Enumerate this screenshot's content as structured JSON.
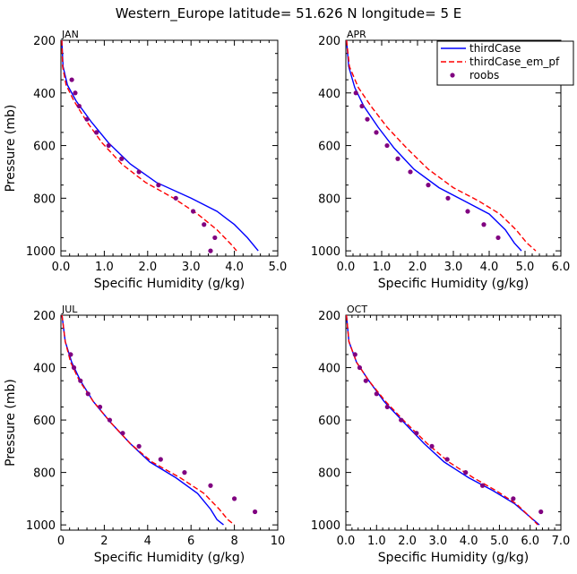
{
  "title": "Western_Europe  latitude= 51.626 N longitude= 5 E",
  "legend": {
    "placement": "top-right of APR panel",
    "entries": [
      {
        "label": "thirdCase",
        "color": "#0000ff",
        "style": "solid"
      },
      {
        "label": "thirdCase_em_pf",
        "color": "#ff0000",
        "style": "dashed"
      },
      {
        "label": "roobs",
        "color": "#800080",
        "style": "dot"
      }
    ]
  },
  "chart_data": [
    {
      "type": "line",
      "panel": "JAN",
      "xlabel": "Specific Humidity (g/kg)",
      "ylabel": "Pressure (mb)",
      "xlim": [
        0,
        5
      ],
      "ylim": [
        1020,
        200
      ],
      "xticks": [
        "0.0",
        "1.0",
        "2.0",
        "3.0",
        "4.0",
        "5.0"
      ],
      "yticks": [
        "200",
        "400",
        "600",
        "800",
        "1000"
      ],
      "series": [
        {
          "name": "thirdCase",
          "points": [
            [
              0.02,
              200
            ],
            [
              0.05,
              300
            ],
            [
              0.15,
              370
            ],
            [
              0.35,
              430
            ],
            [
              0.7,
              510
            ],
            [
              1.1,
              590
            ],
            [
              1.6,
              670
            ],
            [
              2.2,
              740
            ],
            [
              3.0,
              800
            ],
            [
              3.6,
              850
            ],
            [
              4.0,
              900
            ],
            [
              4.3,
              950
            ],
            [
              4.55,
              1000
            ]
          ]
        },
        {
          "name": "thirdCase_em_pf",
          "points": [
            [
              0.02,
              200
            ],
            [
              0.04,
              300
            ],
            [
              0.12,
              370
            ],
            [
              0.3,
              430
            ],
            [
              0.6,
              510
            ],
            [
              0.95,
              590
            ],
            [
              1.4,
              670
            ],
            [
              1.95,
              740
            ],
            [
              2.6,
              800
            ],
            [
              3.15,
              860
            ],
            [
              3.6,
              920
            ],
            [
              3.95,
              980
            ],
            [
              4.05,
              1000
            ]
          ]
        },
        {
          "name": "roobs",
          "points": [
            [
              0.25,
              350
            ],
            [
              0.33,
              400
            ],
            [
              0.42,
              450
            ],
            [
              0.6,
              500
            ],
            [
              0.82,
              550
            ],
            [
              1.1,
              600
            ],
            [
              1.4,
              650
            ],
            [
              1.8,
              700
            ],
            [
              2.25,
              750
            ],
            [
              2.65,
              800
            ],
            [
              3.05,
              850
            ],
            [
              3.3,
              900
            ],
            [
              3.55,
              950
            ],
            [
              3.45,
              1000
            ]
          ]
        }
      ]
    },
    {
      "type": "line",
      "panel": "APR",
      "xlabel": "Specific Humidity (g/kg)",
      "ylabel": "",
      "xlim": [
        0,
        6
      ],
      "ylim": [
        1020,
        200
      ],
      "xticks": [
        "0.0",
        "1.0",
        "2.0",
        "3.0",
        "4.0",
        "5.0",
        "6.0"
      ],
      "yticks": [
        "200",
        "400",
        "600",
        "800",
        "1000"
      ],
      "series": [
        {
          "name": "thirdCase",
          "points": [
            [
              0.02,
              200
            ],
            [
              0.08,
              300
            ],
            [
              0.25,
              380
            ],
            [
              0.5,
              450
            ],
            [
              0.9,
              530
            ],
            [
              1.35,
              610
            ],
            [
              1.9,
              690
            ],
            [
              2.6,
              760
            ],
            [
              3.3,
              810
            ],
            [
              4.0,
              860
            ],
            [
              4.45,
              920
            ],
            [
              4.7,
              970
            ],
            [
              4.9,
              1000
            ]
          ]
        },
        {
          "name": "thirdCase_em_pf",
          "points": [
            [
              0.02,
              200
            ],
            [
              0.1,
              300
            ],
            [
              0.35,
              380
            ],
            [
              0.7,
              450
            ],
            [
              1.15,
              530
            ],
            [
              1.7,
              610
            ],
            [
              2.3,
              690
            ],
            [
              3.0,
              760
            ],
            [
              3.7,
              810
            ],
            [
              4.3,
              860
            ],
            [
              4.75,
              920
            ],
            [
              5.05,
              970
            ],
            [
              5.3,
              1000
            ]
          ]
        },
        {
          "name": "roobs",
          "points": [
            [
              0.28,
              400
            ],
            [
              0.45,
              450
            ],
            [
              0.6,
              500
            ],
            [
              0.85,
              550
            ],
            [
              1.15,
              600
            ],
            [
              1.45,
              650
            ],
            [
              1.8,
              700
            ],
            [
              2.3,
              750
            ],
            [
              2.85,
              800
            ],
            [
              3.4,
              850
            ],
            [
              3.85,
              900
            ],
            [
              4.25,
              950
            ]
          ]
        }
      ]
    },
    {
      "type": "line",
      "panel": "JUL",
      "xlabel": "Specific Humidity (g/kg)",
      "ylabel": "Pressure (mb)",
      "xlim": [
        0,
        10
      ],
      "ylim": [
        1020,
        200
      ],
      "xticks": [
        "0",
        "2",
        "4",
        "6",
        "8",
        "10"
      ],
      "yticks": [
        "200",
        "400",
        "600",
        "800",
        "1000"
      ],
      "series": [
        {
          "name": "thirdCase",
          "points": [
            [
              0.05,
              200
            ],
            [
              0.2,
              300
            ],
            [
              0.5,
              380
            ],
            [
              0.9,
              450
            ],
            [
              1.5,
              530
            ],
            [
              2.3,
              610
            ],
            [
              3.2,
              690
            ],
            [
              4.1,
              760
            ],
            [
              5.3,
              820
            ],
            [
              6.3,
              880
            ],
            [
              6.9,
              940
            ],
            [
              7.2,
              980
            ],
            [
              7.5,
              1000
            ]
          ]
        },
        {
          "name": "thirdCase_em_pf",
          "points": [
            [
              0.05,
              200
            ],
            [
              0.2,
              300
            ],
            [
              0.45,
              380
            ],
            [
              0.85,
              450
            ],
            [
              1.5,
              530
            ],
            [
              2.3,
              610
            ],
            [
              3.2,
              690
            ],
            [
              4.2,
              760
            ],
            [
              5.5,
              820
            ],
            [
              6.6,
              880
            ],
            [
              7.3,
              940
            ],
            [
              7.7,
              980
            ],
            [
              8.0,
              1000
            ]
          ]
        },
        {
          "name": "roobs",
          "points": [
            [
              0.45,
              350
            ],
            [
              0.6,
              400
            ],
            [
              0.9,
              450
            ],
            [
              1.25,
              500
            ],
            [
              1.8,
              550
            ],
            [
              2.25,
              600
            ],
            [
              2.85,
              650
            ],
            [
              3.6,
              700
            ],
            [
              4.6,
              750
            ],
            [
              5.7,
              800
            ],
            [
              6.9,
              850
            ],
            [
              8.0,
              900
            ],
            [
              8.95,
              950
            ]
          ]
        }
      ]
    },
    {
      "type": "line",
      "panel": "OCT",
      "xlabel": "Specific Humidity (g/kg)",
      "ylabel": "",
      "xlim": [
        0,
        7
      ],
      "ylim": [
        1020,
        200
      ],
      "xticks": [
        "0.0",
        "1.0",
        "2.0",
        "3.0",
        "4.0",
        "5.0",
        "6.0",
        "7.0"
      ],
      "yticks": [
        "200",
        "400",
        "600",
        "800",
        "1000"
      ],
      "series": [
        {
          "name": "thirdCase",
          "points": [
            [
              0.02,
              200
            ],
            [
              0.1,
              300
            ],
            [
              0.35,
              380
            ],
            [
              0.75,
              450
            ],
            [
              1.25,
              530
            ],
            [
              1.9,
              610
            ],
            [
              2.55,
              690
            ],
            [
              3.2,
              760
            ],
            [
              4.0,
              820
            ],
            [
              4.8,
              870
            ],
            [
              5.5,
              920
            ],
            [
              6.0,
              970
            ],
            [
              6.3,
              1000
            ]
          ]
        },
        {
          "name": "thirdCase_em_pf",
          "points": [
            [
              0.02,
              200
            ],
            [
              0.1,
              300
            ],
            [
              0.35,
              380
            ],
            [
              0.75,
              450
            ],
            [
              1.3,
              530
            ],
            [
              1.95,
              610
            ],
            [
              2.65,
              690
            ],
            [
              3.35,
              760
            ],
            [
              4.15,
              820
            ],
            [
              4.9,
              870
            ],
            [
              5.55,
              920
            ],
            [
              6.0,
              970
            ],
            [
              6.25,
              1000
            ]
          ]
        },
        {
          "name": "roobs",
          "points": [
            [
              0.3,
              350
            ],
            [
              0.45,
              400
            ],
            [
              0.65,
              450
            ],
            [
              1.0,
              500
            ],
            [
              1.35,
              550
            ],
            [
              1.8,
              600
            ],
            [
              2.3,
              650
            ],
            [
              2.8,
              700
            ],
            [
              3.3,
              750
            ],
            [
              3.9,
              800
            ],
            [
              4.45,
              850
            ],
            [
              5.45,
              900
            ],
            [
              6.35,
              950
            ]
          ]
        }
      ]
    }
  ]
}
